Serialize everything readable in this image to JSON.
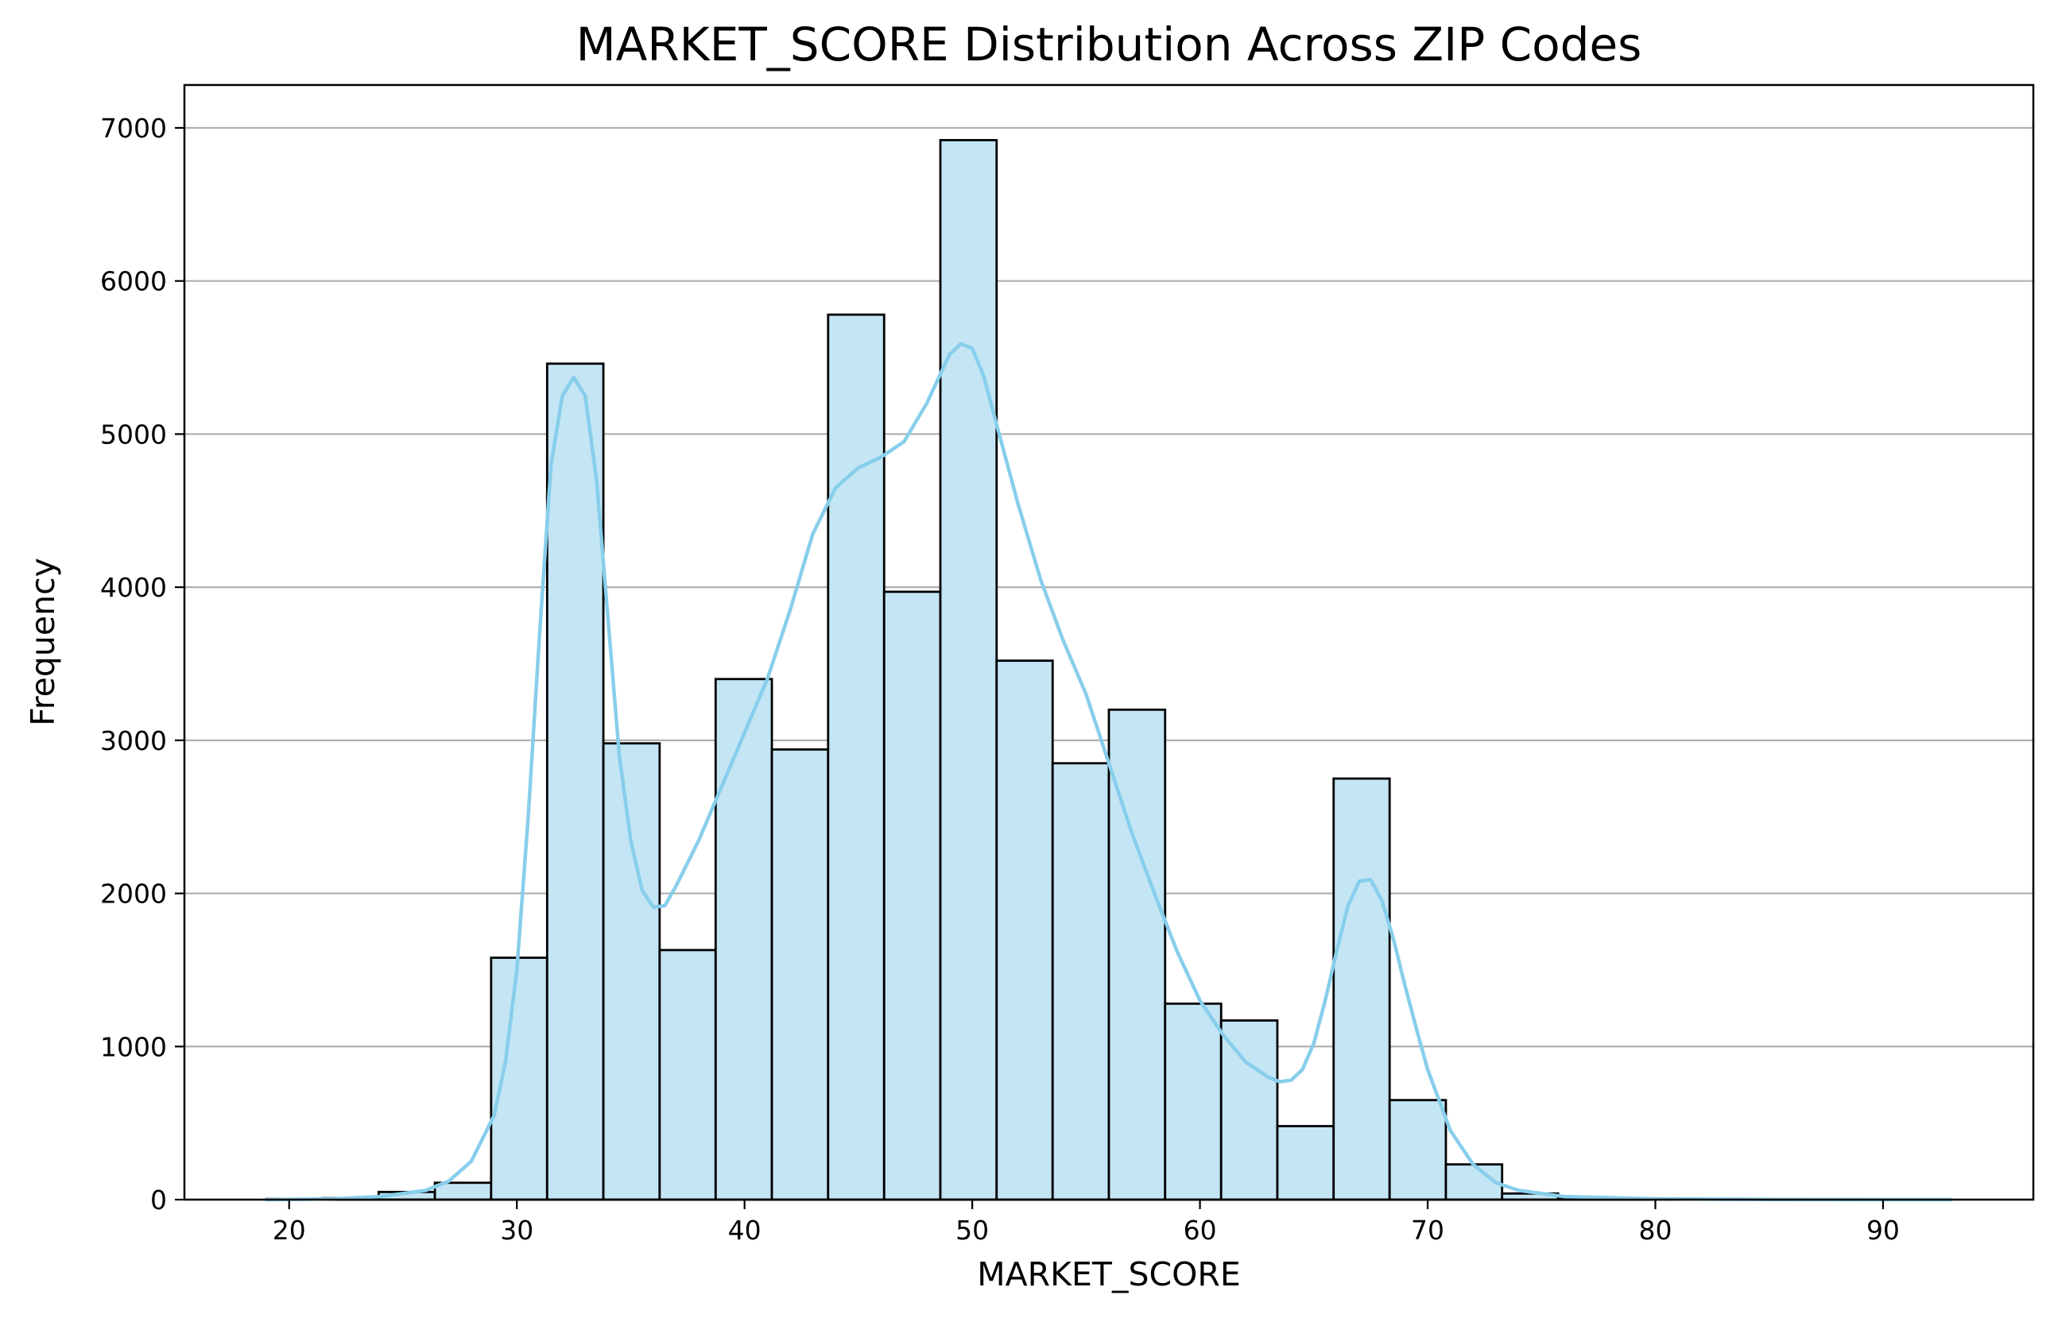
{
  "chart_data": {
    "type": "bar",
    "title": "MARKET_SCORE Distribution Across ZIP Codes",
    "xlabel": "MARKET_SCORE",
    "ylabel": "Frequency",
    "xlim": [
      15.4,
      96.6
    ],
    "ylim": [
      0,
      7280
    ],
    "x_ticks": [
      20,
      30,
      40,
      50,
      60,
      70,
      80,
      90
    ],
    "y_ticks": [
      0,
      1000,
      2000,
      3000,
      4000,
      5000,
      6000,
      7000
    ],
    "grid": "horizontal",
    "bin_edges": [
      19.0,
      21.47,
      23.93,
      26.4,
      28.87,
      31.33,
      33.8,
      36.27,
      38.73,
      41.2,
      43.67,
      46.13,
      48.6,
      51.07,
      53.53,
      56.0,
      58.47,
      60.93,
      63.4,
      65.87,
      68.33,
      70.8,
      73.27,
      75.73,
      78.2,
      80.67,
      83.13,
      85.6,
      88.07,
      90.53,
      93.0
    ],
    "values": [
      5,
      10,
      50,
      110,
      1580,
      5460,
      2980,
      1630,
      3400,
      2940,
      5780,
      3970,
      6920,
      3520,
      2850,
      3200,
      1280,
      1170,
      480,
      2750,
      650,
      230,
      40,
      15,
      5,
      3,
      2,
      1,
      1,
      1
    ],
    "kde": {
      "x": [
        19,
        22,
        24,
        26,
        27,
        28,
        29,
        29.5,
        30,
        30.5,
        31,
        31.5,
        32,
        32.5,
        33,
        33.5,
        34,
        34.5,
        35,
        35.5,
        36,
        36.5,
        37,
        38,
        39,
        40,
        41,
        42,
        43,
        44,
        45,
        46,
        47,
        48,
        49,
        49.5,
        50,
        50.5,
        51,
        52,
        53,
        54,
        55,
        56,
        57,
        58,
        59,
        60,
        61,
        62,
        63,
        63.5,
        64,
        64.5,
        65,
        65.5,
        66,
        66.5,
        67,
        67.5,
        68,
        68.5,
        69,
        69.5,
        70,
        71,
        72,
        73,
        74,
        76,
        80,
        85,
        90,
        93
      ],
      "y": [
        0,
        5,
        20,
        60,
        120,
        250,
        550,
        900,
        1500,
        2500,
        3700,
        4800,
        5250,
        5370,
        5250,
        4700,
        3800,
        2900,
        2350,
        2020,
        1910,
        1920,
        2050,
        2350,
        2700,
        3050,
        3400,
        3850,
        4350,
        4650,
        4780,
        4850,
        4950,
        5200,
        5520,
        5590,
        5560,
        5380,
        5100,
        4550,
        4050,
        3650,
        3300,
        2850,
        2400,
        2000,
        1620,
        1300,
        1080,
        900,
        800,
        770,
        780,
        850,
        1020,
        1300,
        1620,
        1920,
        2080,
        2090,
        1950,
        1700,
        1400,
        1120,
        850,
        450,
        230,
        110,
        60,
        20,
        5,
        1,
        0,
        0
      ]
    },
    "colors": {
      "bar_fill": "#c3e5f4",
      "bar_edge": "#000000",
      "kde_line": "#87ceeb",
      "grid": "#b0b0b0"
    }
  }
}
